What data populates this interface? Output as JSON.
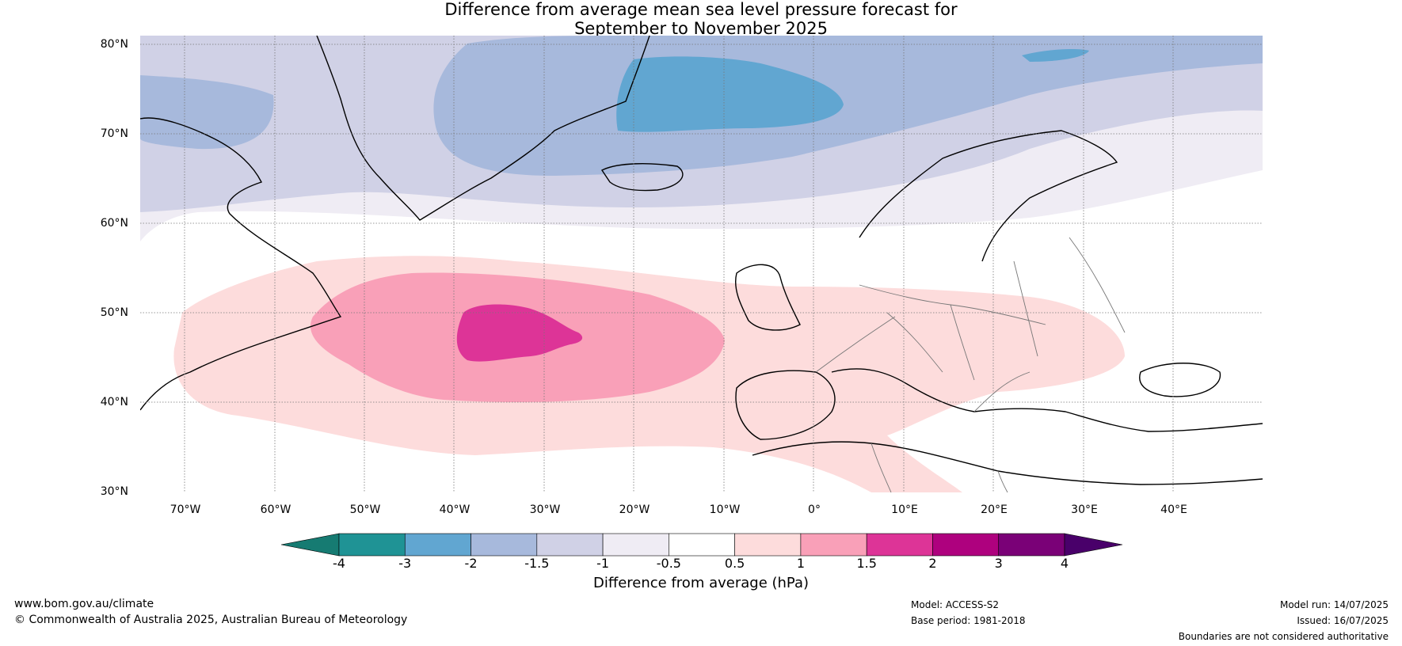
{
  "title": {
    "line1": "Difference from average mean sea level pressure forecast for",
    "line2": "September to November 2025"
  },
  "map": {
    "lat_labels": [
      "80°N",
      "70°N",
      "60°N",
      "50°N",
      "40°N",
      "30°N"
    ],
    "lon_labels": [
      "70°W",
      "60°W",
      "50°W",
      "40°W",
      "30°W",
      "20°W",
      "10°W",
      "0°",
      "10°E",
      "20°E",
      "30°E",
      "40°E"
    ],
    "lat_range": [
      30,
      81
    ],
    "lon_range": [
      -75,
      50
    ],
    "anomaly_regions": [
      {
        "band": "-3 to -2",
        "color": "#61a6d1",
        "description": "Greenland Sea / east of Greenland"
      },
      {
        "band": "-2 to -1.5",
        "color": "#a7b9dc",
        "description": "Labrador Sea, Irminger Sea, Svalbard"
      },
      {
        "band": "-1.5 to -1",
        "color": "#d0d1e6",
        "description": "North Atlantic high latitudes"
      },
      {
        "band": "-1 to -0.5",
        "color": "#efecf4",
        "description": "Scandinavia, southern Greenland"
      },
      {
        "band": "0.5 to 1",
        "color": "#fddcdc",
        "description": "Central North Atlantic, Europe"
      },
      {
        "band": "1 to 1.5",
        "color": "#f9a0b8",
        "description": "Mid-Atlantic"
      },
      {
        "band": "1.5 to 2",
        "color": "#dd3497",
        "description": "Mid-Atlantic near 45°N 35°W"
      }
    ]
  },
  "colorbar": {
    "label": "Difference from average (hPa)",
    "ticks": [
      "-4",
      "-3",
      "-2",
      "-1.5",
      "-1",
      "-0.5",
      "0.5",
      "1",
      "1.5",
      "2",
      "3",
      "4"
    ],
    "colors": [
      "#167b72",
      "#1f9395",
      "#61a6d1",
      "#a7b9dc",
      "#d0d1e6",
      "#efecf4",
      "#ffffff",
      "#fddcdc",
      "#f9a0b8",
      "#dd3497",
      "#ae017e",
      "#7a0177",
      "#49006a"
    ]
  },
  "footer": {
    "website": "www.bom.gov.au/climate",
    "copyright": "© Commonwealth of Australia 2025, Australian Bureau of Meteorology",
    "model": "Model: ACCESS-S2",
    "base_period": "Base period: 1981-2018",
    "model_run": "Model run: 14/07/2025",
    "issued": "Issued: 16/07/2025",
    "disclaimer": "Boundaries are not considered authoritative"
  }
}
